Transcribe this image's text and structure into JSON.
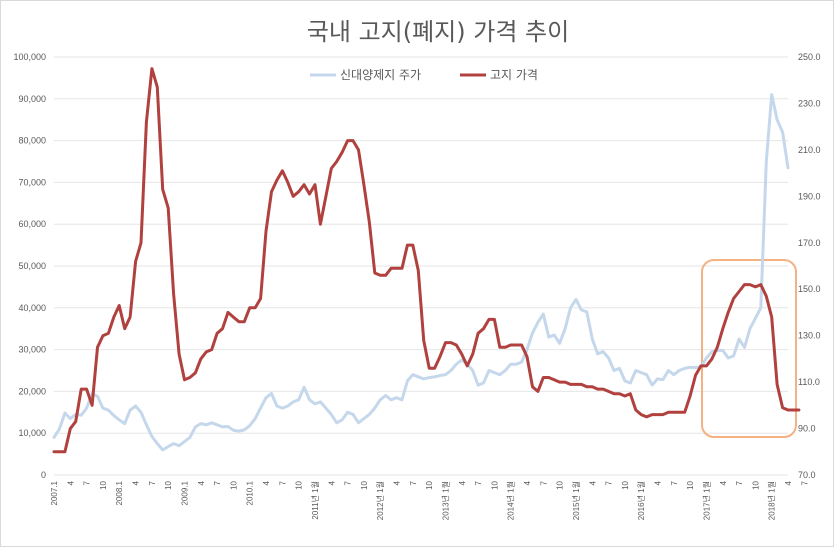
{
  "chart_data": {
    "type": "line",
    "title": "국내 고지(폐지) 가격 추이",
    "left_axis": {
      "ylim": [
        0,
        100000
      ],
      "ticks": [
        "0",
        "10,000",
        "20,000",
        "30,000",
        "40,000",
        "50,000",
        "60,000",
        "70,000",
        "80,000",
        "90,000",
        "100,000"
      ]
    },
    "right_axis": {
      "ylim": [
        70,
        250
      ],
      "ticks": [
        "70.0",
        "90.0",
        "110.0",
        "130.0",
        "150.0",
        "170.0",
        "190.0",
        "210.0",
        "230.0",
        "250.0"
      ]
    },
    "x_ticks": [
      "2007.1",
      "4",
      "7",
      "10",
      "2008.1",
      "4",
      "7",
      "10",
      "2009.1",
      "4",
      "7",
      "10",
      "2010.1",
      "4",
      "7",
      "10",
      "2011년 1월",
      "4",
      "7",
      "10",
      "2012년 1월",
      "4",
      "7",
      "10",
      "2013년 1월",
      "4",
      "7",
      "10",
      "2014년 1월",
      "4",
      "7",
      "10",
      "2015년 1월",
      "4",
      "7",
      "10",
      "2016년 1월",
      "4",
      "7",
      "10",
      "2017년 1월",
      "4",
      "7",
      "10",
      "2018년 1월",
      "4",
      "7"
    ],
    "grid": true,
    "legend_position": "top-center",
    "colors": {
      "series_stock": "#c5d7eb",
      "series_price": "#b0413e",
      "highlight_box": "#f4b183"
    },
    "series": [
      {
        "name": "신대양제지 주가",
        "axis": "left",
        "values": [
          9000,
          11000,
          14800,
          13500,
          14500,
          14300,
          16000,
          19500,
          18800,
          16000,
          15500,
          14200,
          13200,
          12300,
          15500,
          16500,
          15000,
          12000,
          9200,
          7500,
          6000,
          6800,
          7500,
          7000,
          8000,
          9000,
          11500,
          12300,
          12000,
          12500,
          12000,
          11500,
          11600,
          10700,
          10500,
          10800,
          11800,
          13500,
          16000,
          18500,
          19500,
          16500,
          16000,
          16500,
          17500,
          18000,
          21000,
          18000,
          17000,
          17500,
          16000,
          14500,
          12500,
          13200,
          15000,
          14500,
          12500,
          13500,
          14500,
          16000,
          18000,
          19000,
          18000,
          18500,
          18000,
          22500,
          24000,
          23500,
          23000,
          23300,
          23500,
          23800,
          24000,
          25000,
          26500,
          27500,
          26500,
          25000,
          21500,
          22000,
          25000,
          24500,
          24000,
          25000,
          26500,
          26500,
          27000,
          30000,
          34000,
          36500,
          38500,
          33000,
          33500,
          31500,
          35000,
          40000,
          42000,
          39500,
          39000,
          32500,
          29000,
          29500,
          28000,
          25000,
          25500,
          22500,
          22000,
          25000,
          24500,
          24000,
          21500,
          23000,
          22800,
          25000,
          24000,
          25000,
          25500,
          25800,
          25700,
          25900,
          28000,
          29500,
          29800,
          29800,
          28000,
          28500,
          32500,
          30500,
          35000,
          37500,
          40000,
          75000,
          91000,
          85000,
          82000,
          73500
        ]
      },
      {
        "name": "고지 가격",
        "axis": "right",
        "values": [
          80,
          80,
          80,
          90,
          93,
          107,
          107,
          100,
          125,
          130,
          131,
          138,
          143,
          133,
          138,
          162,
          170,
          222,
          245,
          237,
          193,
          185,
          148,
          122,
          111,
          112,
          114,
          120,
          123,
          124,
          131,
          133,
          140,
          138,
          136,
          136,
          142,
          142,
          146,
          175,
          192,
          197,
          201,
          196,
          190,
          192,
          195,
          191,
          195,
          178,
          190,
          202,
          205,
          209,
          214,
          214,
          210,
          195,
          179,
          157,
          156,
          156,
          159,
          159,
          159,
          169,
          169,
          158,
          128,
          116,
          116,
          121,
          127,
          127,
          126,
          122,
          117,
          122,
          131,
          133,
          137,
          137,
          125,
          125,
          126,
          126,
          126,
          121,
          108,
          106,
          112,
          112,
          111,
          110,
          110,
          109,
          109,
          109,
          108,
          108,
          107,
          107,
          106,
          105,
          105,
          104,
          105,
          98,
          96,
          95,
          96,
          96,
          96,
          97,
          97,
          97,
          97,
          104,
          113,
          117,
          117,
          120,
          125,
          133,
          140,
          146,
          149,
          152,
          152,
          151,
          152,
          147,
          138,
          109,
          99,
          98,
          98,
          98
        ]
      }
    ]
  }
}
